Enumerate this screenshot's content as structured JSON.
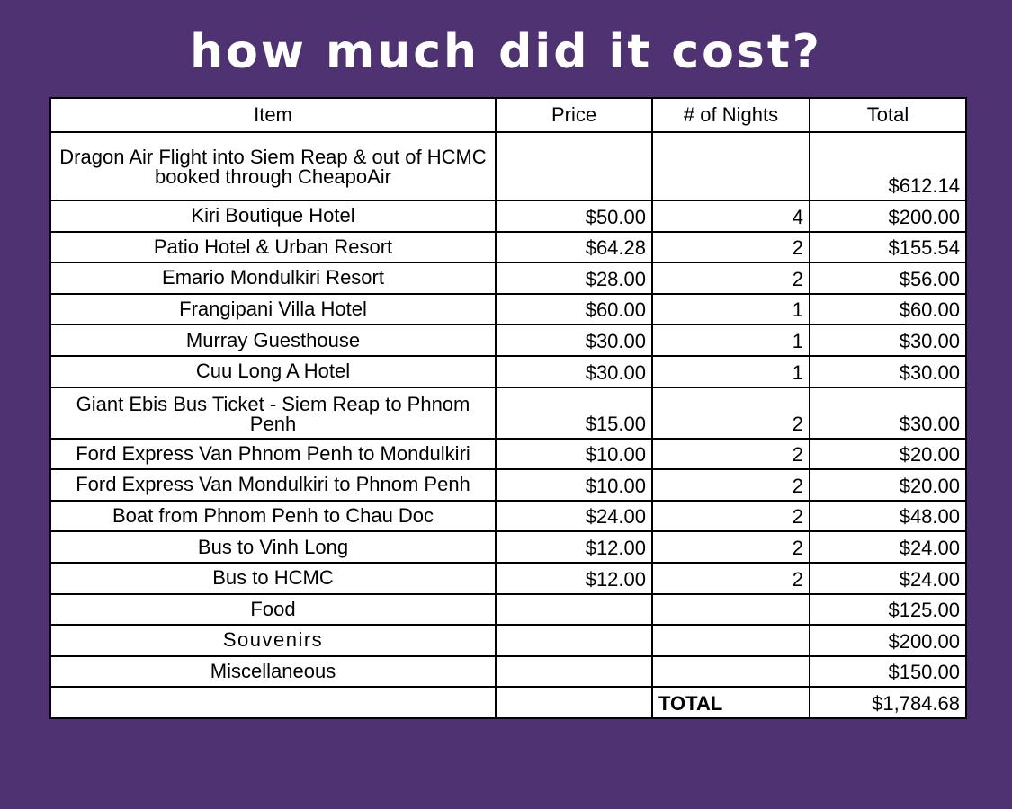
{
  "title": "How much did it cost?",
  "colors": {
    "background": "#4f3272",
    "title_text": "#ffffff",
    "table_bg": "#ffffff",
    "border": "#000000"
  },
  "table": {
    "headers": [
      "Item",
      "Price",
      "# of Nights",
      "Total"
    ],
    "rows": [
      {
        "item": "Dragon Air Flight into Siem Reap & out of HCMC booked through CheapoAir",
        "price": "",
        "nights": "",
        "total": "$612.14"
      },
      {
        "item": "Kiri Boutique Hotel",
        "price": "$50.00",
        "nights": "4",
        "total": "$200.00"
      },
      {
        "item": "Patio Hotel & Urban Resort",
        "price": "$64.28",
        "nights": "2",
        "total": "$155.54"
      },
      {
        "item": "Emario Mondulkiri Resort",
        "price": "$28.00",
        "nights": "2",
        "total": "$56.00"
      },
      {
        "item": "Frangipani Villa Hotel",
        "price": "$60.00",
        "nights": "1",
        "total": "$60.00"
      },
      {
        "item": "Murray Guesthouse",
        "price": "$30.00",
        "nights": "1",
        "total": "$30.00"
      },
      {
        "item": "Cuu Long A Hotel",
        "price": "$30.00",
        "nights": "1",
        "total": "$30.00"
      },
      {
        "item": "Giant Ebis Bus Ticket - Siem Reap to Phnom Penh",
        "price": "$15.00",
        "nights": "2",
        "total": "$30.00"
      },
      {
        "item": "Ford Express Van Phnom Penh to Mondulkiri",
        "price": "$10.00",
        "nights": "2",
        "total": "$20.00"
      },
      {
        "item": "Ford Express Van Mondulkiri to Phnom Penh",
        "price": "$10.00",
        "nights": "2",
        "total": "$20.00"
      },
      {
        "item": "Boat from Phnom Penh to Chau Doc",
        "price": "$24.00",
        "nights": "2",
        "total": "$48.00"
      },
      {
        "item": "Bus to Vinh Long",
        "price": "$12.00",
        "nights": "2",
        "total": "$24.00"
      },
      {
        "item": "Bus to HCMC",
        "price": "$12.00",
        "nights": "2",
        "total": "$24.00"
      },
      {
        "item": "Food",
        "price": "",
        "nights": "",
        "total": "$125.00"
      },
      {
        "item": "Souvenirs",
        "price": "",
        "nights": "",
        "total": "$200.00"
      },
      {
        "item": "Miscellaneous",
        "price": "",
        "nights": "",
        "total": "$150.00"
      }
    ],
    "summary": {
      "label": "TOTAL",
      "value": "$1,784.68"
    }
  }
}
